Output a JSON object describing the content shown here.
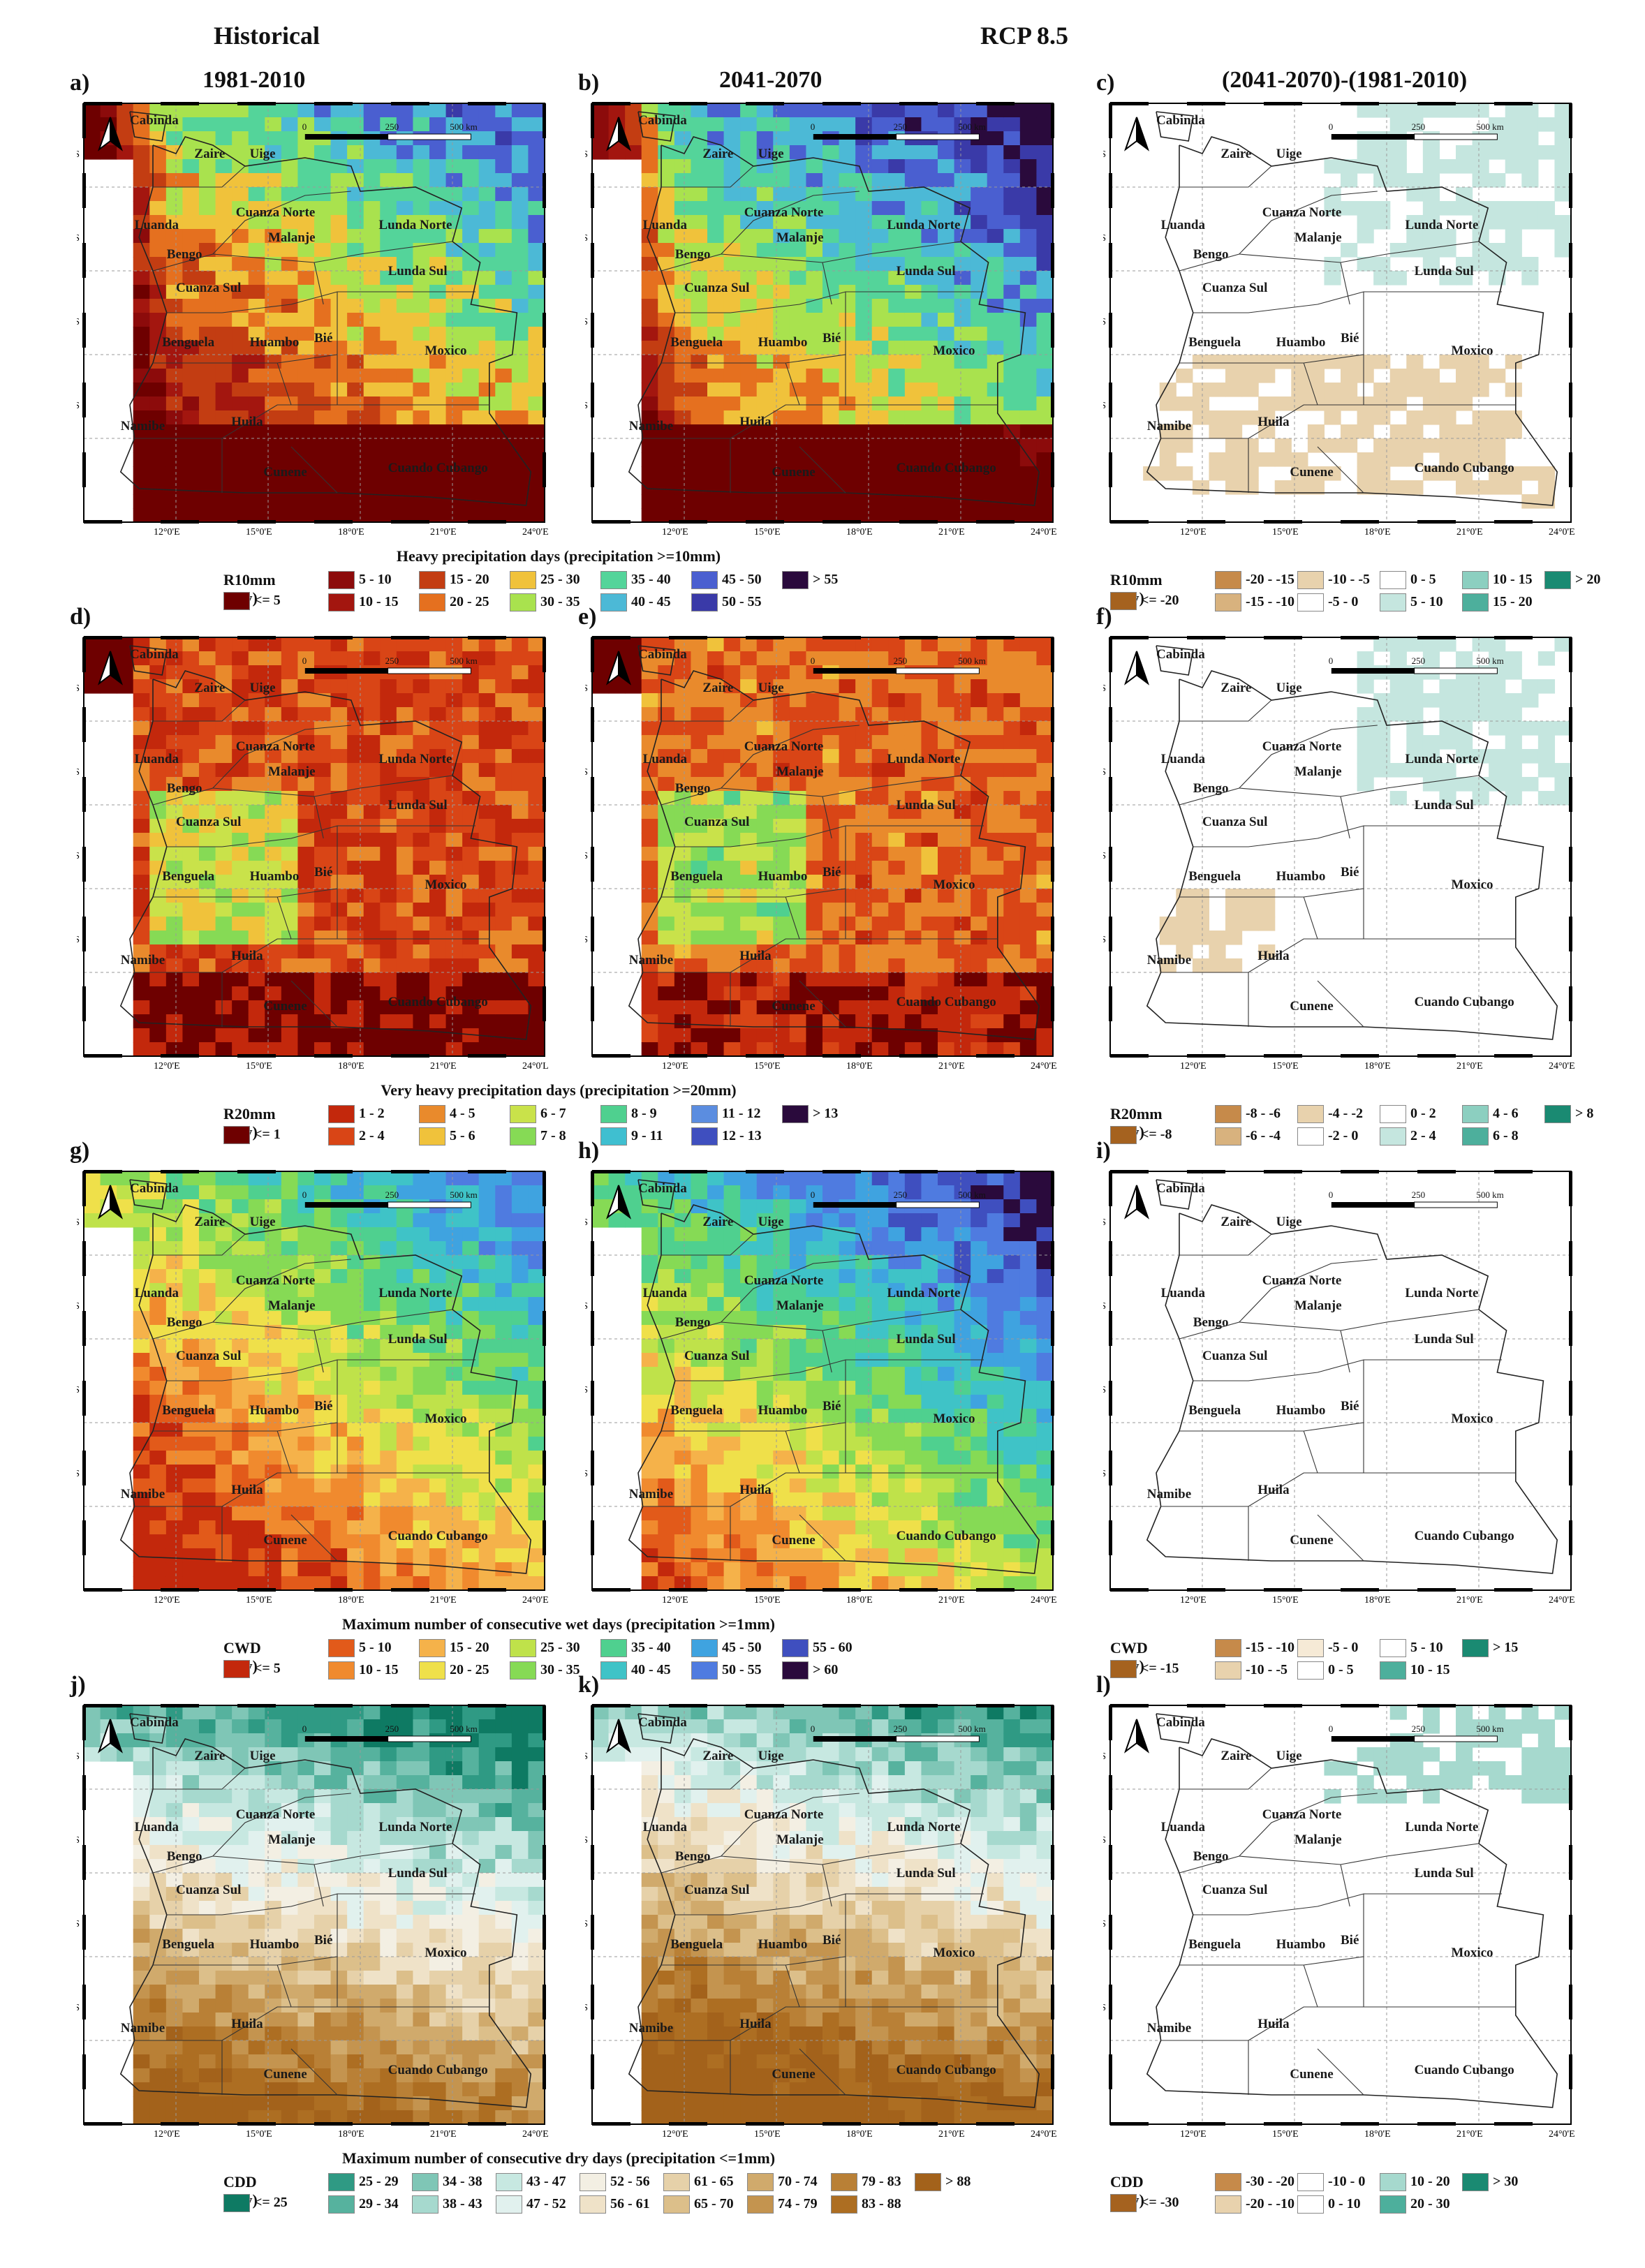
{
  "header": {
    "historical": "Historical",
    "scenario": "RCP 8.5"
  },
  "columns": {
    "col1": "1981-2010",
    "col2": "2041-2070",
    "col3": "(2041-2070)-(1981-2010)"
  },
  "panel_letters": [
    "a)",
    "b)",
    "c)",
    "d)",
    "e)",
    "f)",
    "g)",
    "h)",
    "i)",
    "j)",
    "k)",
    "l)"
  ],
  "lat_ticks": [
    "6°0'S",
    "9°0'S",
    "12°0'S",
    "15°0'S"
  ],
  "lat_ticks_f": [
    "6°0'S",
    "9°0'S",
    "2°0'S",
    "5°0'S"
  ],
  "lon_ticks": [
    "12°0'E",
    "15°0'E",
    "18°0'E",
    "21°0'E",
    "24°0'E"
  ],
  "lon_ticks_d": [
    "12°0'E",
    "15°0'E",
    "18°0'E",
    "21°0'E",
    "24°0'L"
  ],
  "scale": {
    "zero": "0",
    "mid": "250",
    "end": "500 km"
  },
  "provinces": [
    "Cabinda",
    "Zaire",
    "Uige",
    "Luanda",
    "Cuanza Norte",
    "Bengo",
    "Malanje",
    "Lunda Norte",
    "Lunda Sul",
    "Cuanza Sul",
    "Benguela",
    "Huambo",
    "Bié",
    "Moxico",
    "Namibe",
    "Huila",
    "Cunene",
    "Cuando Cubango"
  ],
  "rows": [
    {
      "caption": "Heavy precipitation days (precipitation >=10mm)",
      "abs_var": "R10mm (day)",
      "abs_classes": [
        "<= 5",
        "5 - 10",
        "10 - 15",
        "15 - 20",
        "20 - 25",
        "25 - 30",
        "30 - 35",
        "35 - 40",
        "40 - 45",
        "45 - 50",
        "50 - 55",
        "> 55"
      ],
      "abs_colors": [
        "#6e0000",
        "#8c0b0b",
        "#a3160f",
        "#c33d12",
        "#e5701f",
        "#f0c23b",
        "#a9e24e",
        "#54d49a",
        "#4cb9d6",
        "#4a5fd0",
        "#3a3aa8",
        "#2a0a3c"
      ],
      "diff_var": "R10mm (day)",
      "diff_classes": [
        "<= -20",
        "-20 - -15",
        "-15 - -10",
        "-10 - -5",
        "-5 - 0",
        "0 - 5",
        "5 - 10",
        "10 - 15",
        "15 - 20",
        "> 20"
      ],
      "diff_colors": [
        "#a5621f",
        "#c68a4a",
        "#d8b27e",
        "#e8d2ad",
        "#ffffff",
        "#ffffff",
        "#c5e6df",
        "#8ccfc0",
        "#4daf9c",
        "#1a8a72"
      ]
    },
    {
      "caption": "Very heavy precipitation days (precipitation >=20mm)",
      "abs_var": "R20mm (day)",
      "abs_classes": [
        "<= 1",
        "1 - 2",
        "2 - 4",
        "4 - 5",
        "5 - 6",
        "6 - 7",
        "7 - 8",
        "8 - 9",
        "9 - 11",
        "11 - 12",
        "12 - 13",
        "> 13"
      ],
      "abs_colors": [
        "#6e0000",
        "#c3280c",
        "#d94516",
        "#e98a2c",
        "#f0c23b",
        "#c9e24a",
        "#86da55",
        "#4fd08f",
        "#3fbfd0",
        "#5b8de0",
        "#3f4fbf",
        "#2a0a3c"
      ],
      "diff_var": "R20mm (day)",
      "diff_classes": [
        "<= -8",
        "-8 - -6",
        "-6 - -4",
        "-4 - -2",
        "-2 - 0",
        "0 - 2",
        "2 - 4",
        "4 - 6",
        "6 - 8",
        "> 8"
      ],
      "diff_colors": [
        "#a5621f",
        "#c68a4a",
        "#d8b27e",
        "#e8d2ad",
        "#ffffff",
        "#ffffff",
        "#c5e6df",
        "#8ccfc0",
        "#4daf9c",
        "#1a8a72"
      ]
    },
    {
      "caption": "Maximum number of consecutive wet days (precipitation >=1mm)",
      "abs_var": "CWD (day)",
      "abs_classes": [
        "<= 5",
        "5 - 10",
        "10 - 15",
        "15 - 20",
        "20 - 25",
        "25 - 30",
        "30 - 35",
        "35 - 40",
        "40 - 45",
        "45 - 50",
        "50 - 55",
        "55 - 60",
        "> 60"
      ],
      "abs_colors": [
        "#c3280c",
        "#e25a1a",
        "#f08a2e",
        "#f5b24a",
        "#efe04a",
        "#bfe24a",
        "#86da55",
        "#4fd08f",
        "#3fc3c7",
        "#3fa3e0",
        "#4f7be0",
        "#3f4fbf",
        "#2a0a3c"
      ],
      "diff_var": "CWD (day)",
      "diff_classes": [
        "<= -15",
        "-15 - -10",
        "-10 - -5",
        "-5 - 0",
        "0 - 5",
        "5 - 10",
        "10 - 15",
        "> 15"
      ],
      "diff_colors": [
        "#a5621f",
        "#c68a4a",
        "#e8d2ad",
        "#f6ead6",
        "#ffffff",
        "#ffffff",
        "#4daf9c",
        "#1a8a72"
      ]
    },
    {
      "caption": "Maximum number of consecutive dry days (precipitation <=1mm)",
      "abs_var": "CDD (day)",
      "abs_classes": [
        "<= 25",
        "25 - 29",
        "29 - 34",
        "34 - 38",
        "38 - 43",
        "43 - 47",
        "47 - 52",
        "52 - 56",
        "56 - 61",
        "61 - 65",
        "65 - 70",
        "70 - 74",
        "74 - 79",
        "79 - 83",
        "83 - 88",
        "> 88"
      ],
      "abs_colors": [
        "#0e7a63",
        "#2f9a84",
        "#56b29e",
        "#7fc6b6",
        "#a6d9ce",
        "#c7e8e1",
        "#e1f1ee",
        "#f3efe3",
        "#efe2c8",
        "#e6d1a9",
        "#dcbf8a",
        "#d0aa6c",
        "#c4944f",
        "#b98036",
        "#ad6e22",
        "#a3621b"
      ],
      "diff_var": "CDD (day)",
      "diff_classes": [
        "<= -30",
        "-30 - -20",
        "-20 - -10",
        "-10 - 0",
        "0 - 10",
        "10 - 20",
        "20 - 30",
        "> 30"
      ],
      "diff_colors": [
        "#a5621f",
        "#c68a4a",
        "#e8d2ad",
        "#ffffff",
        "#ffffff",
        "#a6d9ce",
        "#4daf9c",
        "#1a8a72"
      ]
    }
  ]
}
